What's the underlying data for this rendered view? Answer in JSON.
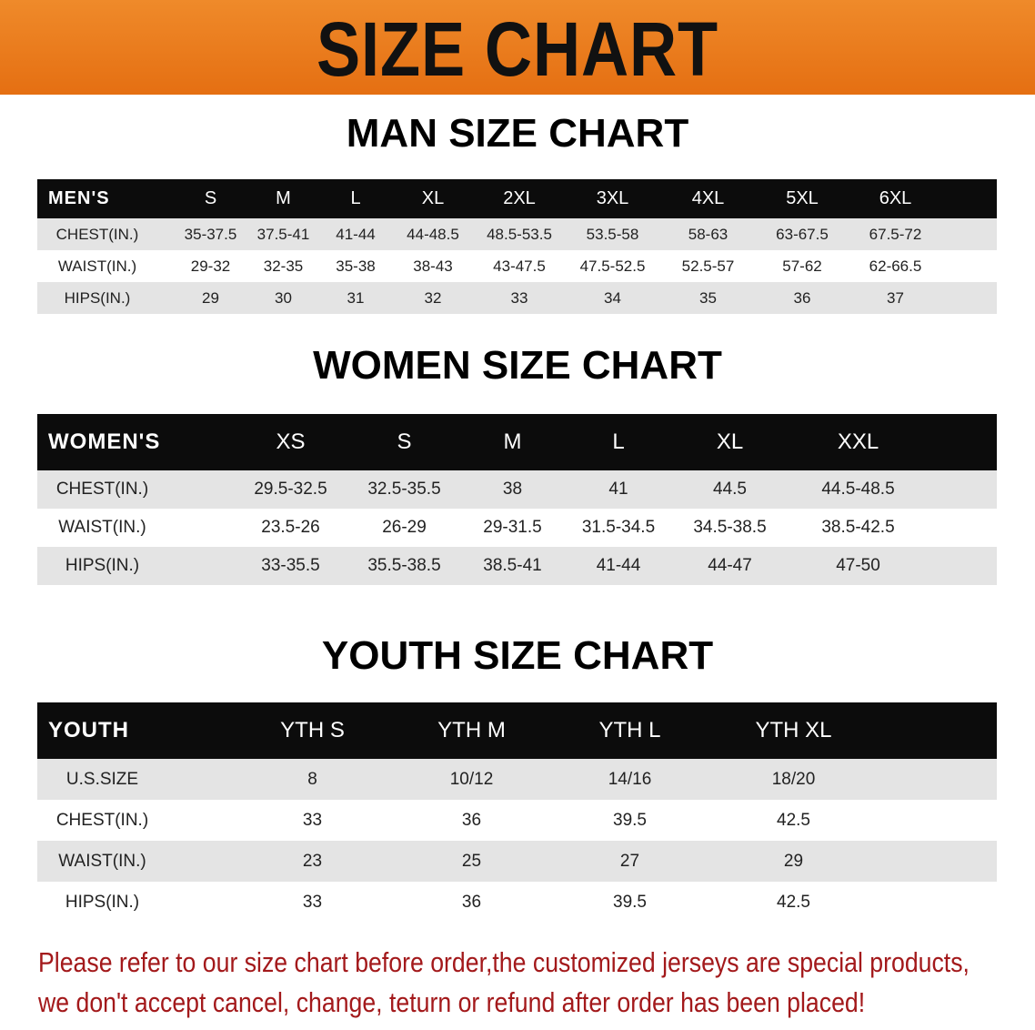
{
  "title": "SIZE CHART",
  "men": {
    "section_title": "MAN SIZE CHART",
    "header": [
      "MEN'S",
      "S",
      "M",
      "L",
      "XL",
      "2XL",
      "3XL",
      "4XL",
      "5XL",
      "6XL"
    ],
    "rows": [
      [
        "CHEST(IN.)",
        "35-37.5",
        "37.5-41",
        "41-44",
        "44-48.5",
        "48.5-53.5",
        "53.5-58",
        "58-63",
        "63-67.5",
        "67.5-72"
      ],
      [
        "WAIST(IN.)",
        "29-32",
        "32-35",
        "35-38",
        "38-43",
        "43-47.5",
        "47.5-52.5",
        "52.5-57",
        "57-62",
        "62-66.5"
      ],
      [
        "HIPS(IN.)",
        "29",
        "30",
        "31",
        "32",
        "33",
        "34",
        "35",
        "36",
        "37"
      ]
    ]
  },
  "women": {
    "section_title": "WOMEN SIZE CHART",
    "header": [
      "WOMEN'S",
      "XS",
      "S",
      "M",
      "L",
      "XL",
      "XXL"
    ],
    "rows": [
      [
        "CHEST(IN.)",
        "29.5-32.5",
        "32.5-35.5",
        "38",
        "41",
        "44.5",
        "44.5-48.5"
      ],
      [
        "WAIST(IN.)",
        "23.5-26",
        "26-29",
        "29-31.5",
        "31.5-34.5",
        "34.5-38.5",
        "38.5-42.5"
      ],
      [
        "HIPS(IN.)",
        "33-35.5",
        "35.5-38.5",
        "38.5-41",
        "41-44",
        "44-47",
        "47-50"
      ]
    ]
  },
  "youth": {
    "section_title": "YOUTH SIZE CHART",
    "header": [
      "YOUTH",
      "YTH S",
      "YTH M",
      "YTH L",
      "YTH XL"
    ],
    "rows": [
      [
        "U.S.SIZE",
        "8",
        "10/12",
        "14/16",
        "18/20"
      ],
      [
        "CHEST(IN.)",
        "33",
        "36",
        "39.5",
        "42.5"
      ],
      [
        "WAIST(IN.)",
        "23",
        "25",
        "27",
        "29"
      ],
      [
        "HIPS(IN.)",
        "33",
        "36",
        "39.5",
        "42.5"
      ]
    ]
  },
  "notice": {
    "line1": "Please refer to our size chart before order,the customized jerseys are special products,",
    "line2": "we don't accept cancel, change, teturn or refund after order has been placed!"
  },
  "colors": {
    "banner": "#e8781c",
    "header_bg": "#0c0c0c",
    "row_alt": "#e4e4e4",
    "notice": "#a3191b"
  }
}
